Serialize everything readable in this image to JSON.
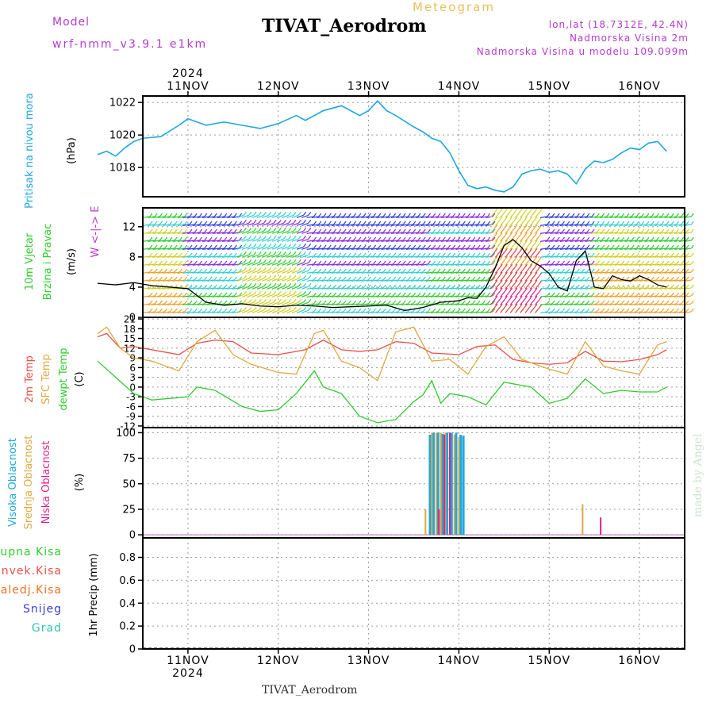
{
  "header": {
    "model_label": "Model",
    "model_name": "wrf-nmm_v3.9.1  e1km",
    "main_title": "TIVAT_Aerodrom",
    "subtitle": "Meteogram",
    "coords": "lon,lat (18.7312E, 42.4N)",
    "elevation": "Nadmorska Visina 2m",
    "model_elevation": "Nadmorska Visina u modelu 109.099m",
    "footer_title": "TIVAT_Aerodrom",
    "credit": "made by Angel"
  },
  "colors": {
    "pressure": "#1ea7e0",
    "temp2m": "#e8504a",
    "sfc": "#e0a840",
    "dewpt": "#2ecc2e",
    "cloud_high": "#1ea7e0",
    "cloud_mid": "#e0a840",
    "cloud_low": "#e0208a",
    "purple": "#b43ccf",
    "precip_total": "#2ecc2e",
    "precip_conv": "#e8504a",
    "precip_frozen": "#f07020",
    "precip_snow": "#3b3bd6",
    "precip_grad": "#2ec4b0"
  },
  "chart_data": [
    {
      "type": "line",
      "panel": "pressure",
      "year_label": "2024",
      "x_labels": [
        "11NOV",
        "12NOV",
        "13NOV",
        "14NOV",
        "15NOV",
        "16NOV"
      ],
      "ylabel_lines": [
        "Pritisak na nivou mora",
        "(hPa)"
      ],
      "yticks": [
        1018,
        1020,
        1022
      ],
      "ylim": [
        1016.2,
        1022.4
      ],
      "series": [
        {
          "x": [
            0,
            0.1,
            0.2,
            0.3,
            0.4,
            0.5,
            0.7,
            0.9,
            1.0,
            1.2,
            1.4,
            1.6,
            1.8,
            2.0,
            2.2,
            2.3,
            2.5,
            2.7,
            2.9,
            3.0,
            3.1,
            3.2,
            3.3,
            3.5,
            3.6,
            3.7,
            3.8,
            3.9,
            4.0,
            4.1,
            4.2,
            4.3,
            4.4,
            4.5,
            4.6,
            4.7,
            4.8,
            4.9,
            5.0,
            5.1,
            5.2,
            5.3,
            5.4,
            5.5,
            5.6,
            5.7,
            5.8,
            5.9,
            6.0,
            6.1,
            6.2,
            6.3
          ],
          "values": [
            1018.8,
            1019.0,
            1018.7,
            1019.2,
            1019.6,
            1019.8,
            1019.9,
            1020.6,
            1021.0,
            1020.6,
            1020.8,
            1020.6,
            1020.4,
            1020.7,
            1021.2,
            1020.9,
            1021.5,
            1021.8,
            1021.2,
            1021.5,
            1022.1,
            1021.5,
            1021.2,
            1020.5,
            1020.2,
            1019.8,
            1019.6,
            1018.9,
            1017.8,
            1016.9,
            1016.7,
            1016.8,
            1016.6,
            1016.5,
            1016.8,
            1017.6,
            1017.8,
            1017.9,
            1017.7,
            1017.8,
            1017.6,
            1017.0,
            1017.9,
            1018.4,
            1018.3,
            1018.5,
            1018.9,
            1019.2,
            1019.1,
            1019.5,
            1019.6,
            1019.0
          ]
        }
      ]
    },
    {
      "type": "line",
      "panel": "wind",
      "ylabel_lines": [
        "10m Vjetar",
        "Brzina i Pravac",
        "(m/s)"
      ],
      "compass": "W <-|-> E",
      "yticks": [
        0,
        4,
        8,
        12
      ],
      "ylim": [
        0,
        14.5
      ],
      "series": [
        {
          "name": "speed",
          "x": [
            0,
            0.2,
            0.4,
            0.6,
            0.8,
            1.0,
            1.2,
            1.4,
            1.6,
            1.8,
            2.0,
            2.2,
            2.4,
            2.6,
            2.8,
            3.0,
            3.2,
            3.4,
            3.6,
            3.8,
            4.0,
            4.1,
            4.2,
            4.3,
            4.4,
            4.5,
            4.6,
            4.7,
            4.8,
            4.9,
            5.0,
            5.1,
            5.2,
            5.3,
            5.4,
            5.5,
            5.6,
            5.7,
            5.8,
            5.9,
            6.0,
            6.1,
            6.2,
            6.3
          ],
          "values": [
            4.5,
            4.3,
            4.6,
            4.2,
            4.0,
            3.8,
            2.0,
            1.6,
            1.8,
            1.5,
            1.4,
            1.6,
            1.5,
            1.3,
            1.4,
            1.5,
            1.6,
            0.9,
            1.3,
            2.0,
            2.2,
            2.6,
            2.5,
            4.0,
            6.5,
            9.5,
            10.3,
            9.2,
            7.5,
            6.8,
            5.8,
            4.0,
            3.5,
            7.5,
            8.8,
            4.0,
            3.8,
            5.5,
            5.0,
            4.8,
            5.5,
            5.0,
            4.3,
            4.0
          ]
        }
      ]
    },
    {
      "type": "line",
      "panel": "temperature",
      "ylabel_lines": [
        "2m Temp",
        "SFC Temp",
        "dewpt Temp",
        "(C)"
      ],
      "yticks": [
        -12,
        -9,
        -6,
        -3,
        0,
        3,
        6,
        9,
        12,
        15,
        18,
        21
      ],
      "ylim": [
        -12.5,
        21.5
      ],
      "series": [
        {
          "name": "2m Temp",
          "x": [
            0,
            0.1,
            0.25,
            0.4,
            0.7,
            0.9,
            1.1,
            1.3,
            1.5,
            1.7,
            2.0,
            2.3,
            2.5,
            2.7,
            2.9,
            3.1,
            3.3,
            3.5,
            3.7,
            4.0,
            4.2,
            4.4,
            4.6,
            4.8,
            5.0,
            5.2,
            5.4,
            5.6,
            5.8,
            6.0,
            6.2,
            6.3
          ],
          "values": [
            15.5,
            16.5,
            12.0,
            12.5,
            11.0,
            10.0,
            13.5,
            14.5,
            14.0,
            10.5,
            10.0,
            11.5,
            14.5,
            11.5,
            11.0,
            11.5,
            14.0,
            13.5,
            10.5,
            10.0,
            12.5,
            13.0,
            8.5,
            7.5,
            7.0,
            7.5,
            11.0,
            8.0,
            7.8,
            8.5,
            10.0,
            11.5
          ]
        },
        {
          "name": "SFC Temp",
          "x": [
            0,
            0.1,
            0.25,
            0.4,
            0.6,
            0.9,
            1.1,
            1.3,
            1.5,
            1.7,
            2.0,
            2.2,
            2.4,
            2.5,
            2.7,
            2.9,
            3.1,
            3.3,
            3.5,
            3.7,
            3.9,
            4.1,
            4.3,
            4.5,
            4.7,
            5.0,
            5.2,
            5.4,
            5.6,
            5.8,
            6.0,
            6.2,
            6.3
          ],
          "values": [
            16.5,
            18.5,
            12.0,
            9.0,
            8.0,
            5.0,
            14.0,
            17.5,
            10.0,
            7.0,
            4.5,
            4.0,
            16.5,
            17.5,
            8.0,
            6.0,
            2.0,
            17.0,
            18.5,
            8.0,
            8.5,
            4.0,
            12.5,
            15.5,
            8.5,
            5.5,
            4.0,
            14.0,
            6.5,
            5.0,
            4.0,
            13.0,
            14.0
          ]
        },
        {
          "name": "dewpt Temp",
          "x": [
            0,
            0.2,
            0.4,
            0.6,
            0.8,
            1.0,
            1.1,
            1.3,
            1.6,
            1.8,
            2.0,
            2.2,
            2.4,
            2.5,
            2.7,
            2.9,
            3.1,
            3.3,
            3.5,
            3.6,
            3.7,
            3.8,
            3.9,
            4.1,
            4.3,
            4.5,
            4.8,
            5.0,
            5.2,
            5.4,
            5.6,
            5.8,
            6.0,
            6.2,
            6.3
          ],
          "values": [
            8.0,
            3.0,
            -2.0,
            -4.0,
            -3.5,
            -3.0,
            0.0,
            -1.0,
            -6.0,
            -7.5,
            -7.0,
            -2.0,
            5.0,
            0.0,
            -2.0,
            -9.0,
            -11.0,
            -10.0,
            -4.5,
            -2.5,
            2.0,
            -5.0,
            -2.0,
            -3.0,
            -5.5,
            1.5,
            0.0,
            -5.0,
            -3.5,
            2.5,
            -2.0,
            -1.0,
            -1.5,
            -1.5,
            0.0
          ]
        }
      ]
    },
    {
      "type": "bar",
      "panel": "cloud",
      "ylabel_lines": [
        "Visoka Oblacnost",
        "Srednja Oblacnost",
        "Niska Oblacnost",
        "(%)"
      ],
      "yticks": [
        0,
        25,
        50,
        75,
        100
      ],
      "ylim": [
        -3,
        105
      ],
      "series": [
        {
          "name": "Visoka Oblacnost",
          "x": [
            3.68,
            3.72,
            3.77,
            3.82,
            3.87,
            3.92,
            3.97,
            4.02,
            4.05
          ],
          "values": [
            98,
            100,
            100,
            99,
            100,
            100,
            100,
            98,
            97
          ]
        },
        {
          "name": "Srednja Oblacnost",
          "x": [
            3.63,
            3.7,
            3.75,
            3.8,
            3.85,
            3.9,
            3.95,
            4.0,
            5.37
          ],
          "values": [
            25,
            100,
            100,
            100,
            100,
            100,
            98,
            96,
            30
          ]
        },
        {
          "name": "Niska Oblacnost",
          "x": [
            3.78,
            3.84,
            3.9,
            5.57
          ],
          "values": [
            25,
            98,
            100,
            17
          ]
        }
      ]
    },
    {
      "type": "bar",
      "panel": "precip",
      "ylabel_lines": [
        "1hr Precip (mm)"
      ],
      "legend": [
        "Ukupna Kisa",
        "Konvek.Kisa",
        "Zaledj.Kisa",
        "Snijeg",
        "Grad"
      ],
      "yticks": [
        0,
        0.2,
        0.4,
        0.6,
        0.8
      ],
      "ylim": [
        0,
        0.97
      ],
      "series": []
    }
  ]
}
